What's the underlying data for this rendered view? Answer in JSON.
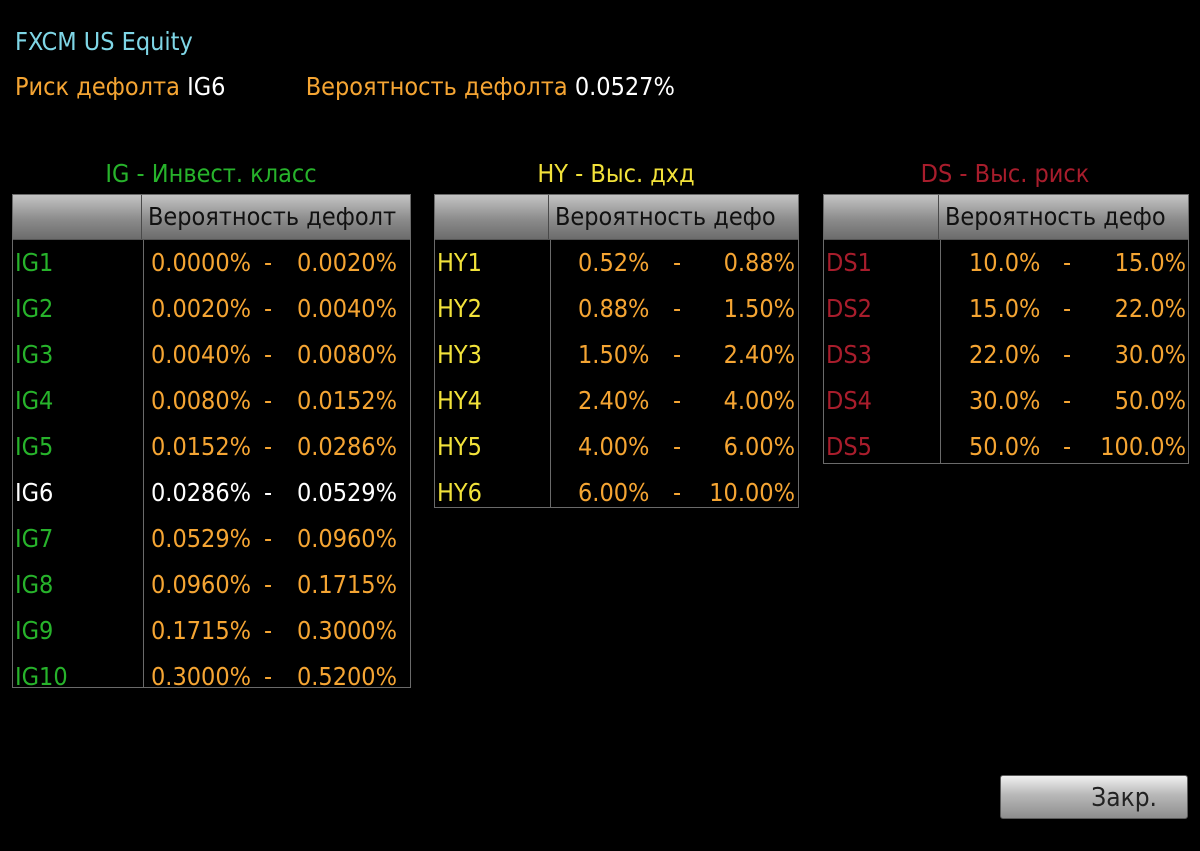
{
  "header": {
    "security": "FXCM US Equity",
    "risk_label": "Риск дефолта",
    "risk_value": "IG6",
    "prob_label": "Вероятность дефолта",
    "prob_value": "0.0527%"
  },
  "tables": {
    "ig": {
      "title": "IG - Инвест. класс",
      "column_header": "Вероятность дефолт",
      "rows": [
        {
          "name": "IG1",
          "low": "0.0000%",
          "high": "0.0020%"
        },
        {
          "name": "IG2",
          "low": "0.0020%",
          "high": "0.0040%"
        },
        {
          "name": "IG3",
          "low": "0.0040%",
          "high": "0.0080%"
        },
        {
          "name": "IG4",
          "low": "0.0080%",
          "high": "0.0152%"
        },
        {
          "name": "IG5",
          "low": "0.0152%",
          "high": "0.0286%"
        },
        {
          "name": "IG6",
          "low": "0.0286%",
          "high": "0.0529%"
        },
        {
          "name": "IG7",
          "low": "0.0529%",
          "high": "0.0960%"
        },
        {
          "name": "IG8",
          "low": "0.0960%",
          "high": "0.1715%"
        },
        {
          "name": "IG9",
          "low": "0.1715%",
          "high": "0.3000%"
        },
        {
          "name": "IG10",
          "low": "0.3000%",
          "high": "0.5200%"
        }
      ]
    },
    "hy": {
      "title": "HY - Выс. дхд",
      "column_header": "Вероятность дефо",
      "rows": [
        {
          "name": "HY1",
          "low": "0.52%",
          "high": "0.88%"
        },
        {
          "name": "HY2",
          "low": "0.88%",
          "high": "1.50%"
        },
        {
          "name": "HY3",
          "low": "1.50%",
          "high": "2.40%"
        },
        {
          "name": "HY4",
          "low": "2.40%",
          "high": "4.00%"
        },
        {
          "name": "HY5",
          "low": "4.00%",
          "high": "6.00%"
        },
        {
          "name": "HY6",
          "low": "6.00%",
          "high": "10.00%"
        }
      ]
    },
    "ds": {
      "title": "DS - Выс. риск",
      "column_header": "Вероятность дефо",
      "rows": [
        {
          "name": "DS1",
          "low": "10.0%",
          "high": "15.0%"
        },
        {
          "name": "DS2",
          "low": "15.0%",
          "high": "22.0%"
        },
        {
          "name": "DS3",
          "low": "22.0%",
          "high": "30.0%"
        },
        {
          "name": "DS4",
          "low": "30.0%",
          "high": "50.0%"
        },
        {
          "name": "DS5",
          "low": "50.0%",
          "high": "100.0%"
        }
      ]
    }
  },
  "separator": "-",
  "current_rating": "IG6",
  "colors": {
    "ig": "#27b32b",
    "hy": "#f2e23a",
    "ds": "#a81d2c",
    "value": "#f5a533",
    "security": "#7fd6e6"
  },
  "close_button": {
    "label": "Закр."
  }
}
